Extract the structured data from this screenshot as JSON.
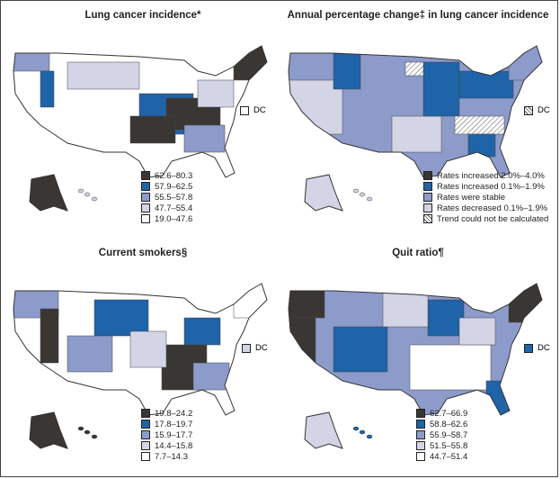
{
  "colors": {
    "c1": "#3a3634",
    "c2": "#1f63a8",
    "c3": "#8d9bcb",
    "c4": "#d3d4e6",
    "c5": "#ffffff",
    "hatch": "hatch"
  },
  "panels": [
    {
      "title": "Lung cancer incidence*",
      "dc_label": "DC",
      "dc_class": "c5",
      "legend": [
        {
          "label": "62.6–80.3",
          "class": "c1"
        },
        {
          "label": "57.9–62.5",
          "class": "c2"
        },
        {
          "label": "55.5–57.8",
          "class": "c3"
        },
        {
          "label": "47.7–55.4",
          "class": "c4"
        },
        {
          "label": "19.0–47.6",
          "class": "c5"
        }
      ]
    },
    {
      "title": "Annual percentage change‡ in lung cancer incidence",
      "dc_label": "DC",
      "dc_class": "hatch",
      "legend": [
        {
          "label": "Rates increased 2.0%–4.0%",
          "class": "c1"
        },
        {
          "label": "Rates increased 0.1%–1.9%",
          "class": "c2"
        },
        {
          "label": "Rates were stable",
          "class": "c3"
        },
        {
          "label": "Rates decreased 0.1%–1.9%",
          "class": "c4"
        },
        {
          "label": "Trend could not be calculated",
          "class": "hatch"
        }
      ]
    },
    {
      "title": "Current smokers§",
      "dc_label": "DC",
      "dc_class": "c4",
      "legend": [
        {
          "label": "19.8–24.2",
          "class": "c1"
        },
        {
          "label": "17.8–19.7",
          "class": "c2"
        },
        {
          "label": "15.9–17.7",
          "class": "c3"
        },
        {
          "label": "14.4–15.8",
          "class": "c4"
        },
        {
          "label": "7.7–14.3",
          "class": "c5"
        }
      ]
    },
    {
      "title": "Quit ratio¶",
      "dc_label": "DC",
      "dc_class": "c2",
      "legend": [
        {
          "label": "62.7–66.9",
          "class": "c1"
        },
        {
          "label": "58.8–62.6",
          "class": "c2"
        },
        {
          "label": "55.9–58.7",
          "class": "c3"
        },
        {
          "label": "51.5–55.8",
          "class": "c4"
        },
        {
          "label": "44.7–51.4",
          "class": "c5"
        }
      ]
    }
  ]
}
